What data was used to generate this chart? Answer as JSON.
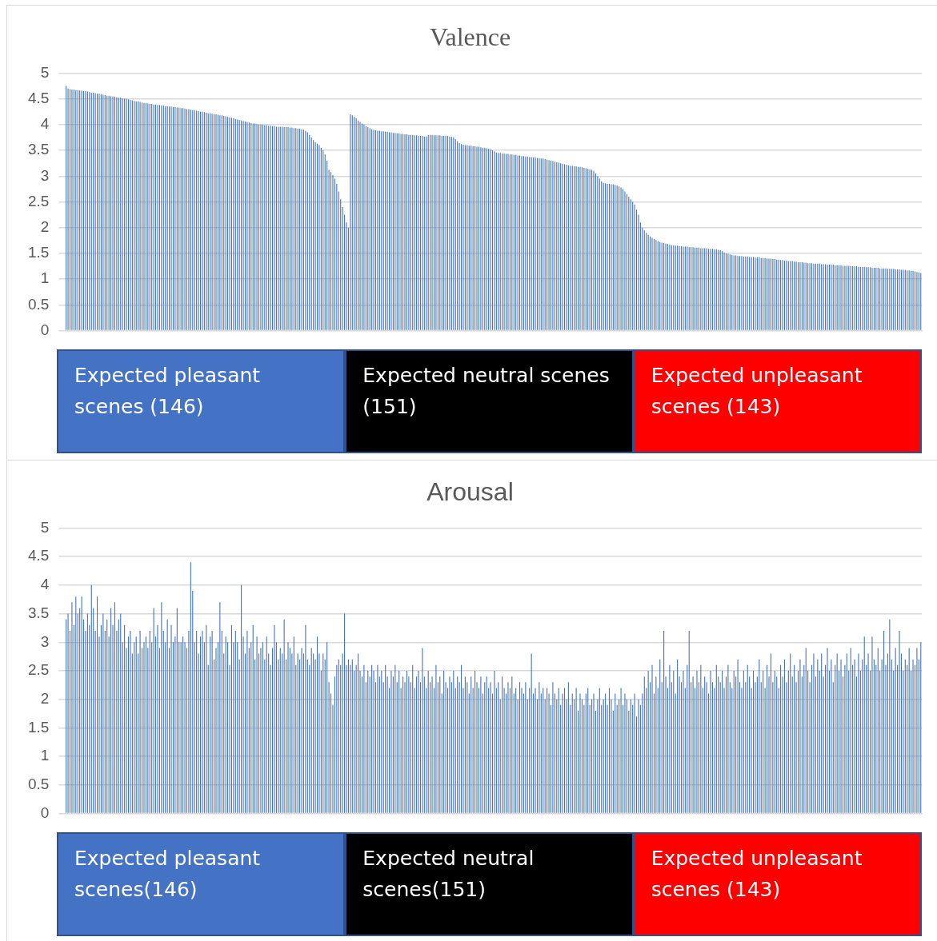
{
  "chart_data": [
    {
      "type": "bar",
      "title": "Valence",
      "tick_labels": "y",
      "grid": "y",
      "legend": false,
      "ylim": [
        0,
        5
      ],
      "yticks": [
        0,
        0.5,
        1,
        1.5,
        2,
        2.5,
        3,
        3.5,
        4,
        4.5,
        5
      ],
      "annotations": [
        "Expected pleasant scenes (146)",
        "Expected neutral scenes (151)",
        "Expected unpleasant scenes (143)"
      ],
      "categories": [
        null,
        null,
        null,
        null,
        null,
        null,
        null,
        null,
        null,
        null,
        null,
        null,
        null,
        null,
        null,
        null,
        null,
        null,
        null,
        null,
        null,
        null,
        null,
        null,
        null,
        null,
        null,
        null,
        null,
        null,
        null,
        null,
        null,
        null,
        null,
        null,
        null,
        null,
        null,
        null,
        null,
        null,
        null,
        null,
        null,
        null,
        null,
        null,
        null,
        null,
        null,
        null,
        null,
        null,
        null,
        null,
        null,
        null,
        null,
        null,
        null,
        null,
        null,
        null,
        null,
        null,
        null,
        null,
        null,
        null,
        null,
        null,
        null,
        null,
        null,
        null,
        null,
        null,
        null,
        null,
        null,
        null,
        null,
        null,
        null,
        null,
        null,
        null,
        null,
        null,
        null,
        null,
        null,
        null,
        null,
        null,
        null,
        null,
        null,
        null,
        null,
        null,
        null,
        null,
        null,
        null,
        null,
        null,
        null,
        null,
        null,
        null,
        null,
        null,
        null,
        null,
        null,
        null,
        null,
        null,
        null,
        null,
        null,
        null,
        null,
        null,
        null,
        null,
        null,
        null,
        null,
        null,
        null,
        null,
        null,
        null,
        null,
        null,
        null,
        null,
        null,
        null,
        null,
        null,
        null,
        null,
        null,
        null,
        null,
        null,
        null,
        null,
        null,
        null,
        null,
        null,
        null,
        null,
        null,
        null,
        null,
        null,
        null,
        null,
        null,
        null,
        null,
        null,
        null,
        null,
        null,
        null,
        null,
        null,
        null,
        null,
        null,
        null,
        null,
        null,
        null,
        null,
        null,
        null,
        null,
        null,
        null,
        null,
        null,
        null,
        null,
        null,
        null,
        null,
        null,
        null,
        null,
        null,
        null,
        null,
        null,
        null,
        null,
        null,
        null,
        null,
        null,
        null,
        null,
        null,
        null,
        null,
        null,
        null,
        null,
        null,
        null,
        null,
        null,
        null,
        null,
        null,
        null,
        null,
        null,
        null,
        null,
        null,
        null,
        null,
        null,
        null,
        null,
        null,
        null,
        null,
        null,
        null,
        null,
        null,
        null,
        null,
        null,
        null,
        null,
        null,
        null,
        null,
        null,
        null,
        null,
        null,
        null,
        null,
        null,
        null,
        null,
        null,
        null,
        null,
        null,
        null,
        null,
        null,
        null,
        null,
        null,
        null,
        null,
        null,
        null,
        null,
        null,
        null,
        null,
        null,
        null,
        null,
        null,
        null,
        null,
        null,
        null,
        null,
        null,
        null,
        null,
        null,
        null,
        null,
        null,
        null,
        null,
        null,
        null,
        null,
        null,
        null,
        null,
        null,
        null,
        null,
        null,
        null,
        null,
        null,
        null,
        null,
        null,
        null,
        null,
        null,
        null,
        null,
        null,
        null,
        null,
        null,
        null,
        null,
        null,
        null,
        null,
        null,
        null,
        null,
        null,
        null,
        null,
        null,
        null,
        null,
        null,
        null,
        null,
        null,
        null,
        null,
        null,
        null,
        null,
        null,
        null,
        null,
        null,
        null,
        null,
        null,
        null,
        null,
        null,
        null,
        null,
        null,
        null,
        null,
        null,
        null,
        null,
        null,
        null,
        null,
        null,
        null,
        null,
        null,
        null,
        null,
        null,
        null,
        null,
        null,
        null,
        null,
        null,
        null,
        null,
        null,
        null,
        null,
        null,
        null,
        null,
        null,
        null,
        null,
        null,
        null,
        null,
        null,
        null,
        null,
        null,
        null,
        null,
        null,
        null,
        null,
        null,
        null,
        null,
        null,
        null,
        null,
        null,
        null,
        null,
        null,
        null,
        null,
        null,
        null,
        null,
        null,
        null,
        null,
        null,
        null,
        null,
        null,
        null,
        null,
        null,
        null,
        null,
        null,
        null,
        null,
        null,
        null,
        null,
        null,
        null,
        null,
        null,
        null,
        null,
        null,
        null,
        null
      ],
      "series": [
        {
          "color": "#4472c4",
          "values": [
            4.75,
            4.7,
            4.69,
            4.68,
            4.68,
            4.67,
            4.67,
            4.66,
            4.66,
            4.65,
            4.65,
            4.64,
            4.63,
            4.62,
            4.62,
            4.61,
            4.6,
            4.6,
            4.59,
            4.58,
            4.57,
            4.56,
            4.56,
            4.55,
            4.55,
            4.54,
            4.53,
            4.52,
            4.52,
            4.51,
            4.5,
            4.5,
            4.49,
            4.48,
            4.47,
            4.46,
            4.45,
            4.45,
            4.44,
            4.43,
            4.42,
            4.42,
            4.41,
            4.4,
            4.4,
            4.39,
            4.39,
            4.38,
            4.38,
            4.37,
            4.37,
            4.36,
            4.36,
            4.35,
            4.35,
            4.34,
            4.34,
            4.33,
            4.33,
            4.32,
            4.32,
            4.31,
            4.3,
            4.3,
            4.29,
            4.28,
            4.28,
            4.27,
            4.26,
            4.25,
            4.25,
            4.24,
            4.23,
            4.22,
            4.22,
            4.21,
            4.2,
            4.2,
            4.19,
            4.18,
            4.18,
            4.17,
            4.16,
            4.15,
            4.14,
            4.13,
            4.12,
            4.11,
            4.1,
            4.09,
            4.08,
            4.07,
            4.06,
            4.05,
            4.04,
            4.03,
            4.02,
            4.02,
            4.01,
            4.0,
            4.0,
            4.0,
            3.99,
            3.99,
            3.98,
            3.98,
            3.97,
            3.97,
            3.96,
            3.96,
            3.96,
            3.96,
            3.95,
            3.95,
            3.95,
            3.94,
            3.94,
            3.93,
            3.93,
            3.92,
            3.92,
            3.91,
            3.9,
            3.88,
            3.85,
            3.8,
            3.75,
            3.7,
            3.66,
            3.63,
            3.6,
            3.55,
            3.5,
            3.42,
            3.3,
            3.12,
            3.08,
            3.02,
            2.95,
            2.85,
            2.7,
            2.55,
            2.4,
            2.25,
            2.1,
            2.0,
            4.2,
            4.18,
            4.15,
            4.12,
            4.08,
            4.05,
            4.02,
            4.0,
            3.97,
            3.95,
            3.93,
            3.91,
            3.9,
            3.89,
            3.88,
            3.88,
            3.87,
            3.87,
            3.86,
            3.86,
            3.85,
            3.85,
            3.84,
            3.84,
            3.83,
            3.83,
            3.82,
            3.82,
            3.81,
            3.81,
            3.8,
            3.8,
            3.8,
            3.79,
            3.79,
            3.78,
            3.78,
            3.78,
            3.77,
            3.77,
            3.8,
            3.8,
            3.8,
            3.79,
            3.79,
            3.79,
            3.79,
            3.78,
            3.78,
            3.78,
            3.78,
            3.77,
            3.76,
            3.75,
            3.72,
            3.68,
            3.64,
            3.62,
            3.61,
            3.6,
            3.6,
            3.59,
            3.59,
            3.58,
            3.58,
            3.57,
            3.57,
            3.56,
            3.55,
            3.55,
            3.54,
            3.53,
            3.52,
            3.5,
            3.48,
            3.46,
            3.45,
            3.45,
            3.44,
            3.44,
            3.43,
            3.43,
            3.42,
            3.42,
            3.41,
            3.41,
            3.4,
            3.4,
            3.39,
            3.39,
            3.38,
            3.38,
            3.37,
            3.37,
            3.36,
            3.36,
            3.35,
            3.35,
            3.34,
            3.34,
            3.33,
            3.32,
            3.31,
            3.3,
            3.29,
            3.28,
            3.27,
            3.26,
            3.25,
            3.24,
            3.23,
            3.22,
            3.21,
            3.2,
            3.2,
            3.19,
            3.19,
            3.18,
            3.18,
            3.17,
            3.16,
            3.15,
            3.14,
            3.13,
            3.12,
            3.1,
            3.05,
            3.0,
            2.95,
            2.9,
            2.87,
            2.86,
            2.85,
            2.85,
            2.84,
            2.84,
            2.83,
            2.82,
            2.8,
            2.78,
            2.75,
            2.7,
            2.65,
            2.6,
            2.55,
            2.5,
            2.45,
            2.35,
            2.25,
            2.1,
            2.0,
            1.95,
            1.9,
            1.86,
            1.83,
            1.8,
            1.78,
            1.76,
            1.74,
            1.72,
            1.71,
            1.7,
            1.69,
            1.68,
            1.67,
            1.66,
            1.66,
            1.65,
            1.65,
            1.64,
            1.64,
            1.63,
            1.63,
            1.63,
            1.62,
            1.62,
            1.62,
            1.61,
            1.61,
            1.61,
            1.6,
            1.6,
            1.6,
            1.6,
            1.59,
            1.59,
            1.59,
            1.58,
            1.58,
            1.57,
            1.56,
            1.54,
            1.52,
            1.5,
            1.49,
            1.48,
            1.47,
            1.46,
            1.46,
            1.45,
            1.45,
            1.45,
            1.44,
            1.44,
            1.44,
            1.43,
            1.43,
            1.43,
            1.42,
            1.42,
            1.42,
            1.41,
            1.41,
            1.41,
            1.4,
            1.4,
            1.4,
            1.39,
            1.39,
            1.38,
            1.38,
            1.37,
            1.37,
            1.36,
            1.36,
            1.35,
            1.35,
            1.35,
            1.34,
            1.34,
            1.33,
            1.33,
            1.33,
            1.32,
            1.32,
            1.31,
            1.31,
            1.31,
            1.3,
            1.3,
            1.3,
            1.3,
            1.29,
            1.29,
            1.29,
            1.28,
            1.28,
            1.28,
            1.28,
            1.27,
            1.27,
            1.27,
            1.27,
            1.26,
            1.26,
            1.26,
            1.26,
            1.25,
            1.25,
            1.25,
            1.25,
            1.24,
            1.24,
            1.24,
            1.24,
            1.23,
            1.23,
            1.23,
            1.22,
            1.22,
            1.22,
            1.22,
            1.21,
            1.21,
            1.21,
            1.21,
            1.2,
            1.2,
            1.2,
            1.2,
            1.19,
            1.19,
            1.19,
            1.18,
            1.18,
            1.18,
            1.17,
            1.17,
            1.16,
            1.16,
            1.15,
            1.14,
            1.13,
            1.12
          ]
        }
      ]
    },
    {
      "type": "bar",
      "title": "Arousal",
      "tick_labels": "y",
      "grid": "y",
      "legend": false,
      "ylim": [
        0,
        5
      ],
      "yticks": [
        0,
        0.5,
        1,
        1.5,
        2,
        2.5,
        3,
        3.5,
        4,
        4.5,
        5
      ],
      "annotations": [
        "Expected pleasant scenes(146)",
        "Expected neutral scenes(151)",
        "Expected unpleasant scenes (143)"
      ],
      "categories": [
        null,
        null,
        null,
        null,
        null,
        null,
        null,
        null,
        null,
        null,
        null,
        null,
        null,
        null,
        null,
        null,
        null,
        null,
        null,
        null,
        null,
        null,
        null,
        null,
        null,
        null,
        null,
        null,
        null,
        null,
        null,
        null,
        null,
        null,
        null,
        null,
        null,
        null,
        null,
        null,
        null,
        null,
        null,
        null,
        null,
        null,
        null,
        null,
        null,
        null,
        null,
        null,
        null,
        null,
        null,
        null,
        null,
        null,
        null,
        null,
        null,
        null,
        null,
        null,
        null,
        null,
        null,
        null,
        null,
        null,
        null,
        null,
        null,
        null,
        null,
        null,
        null,
        null,
        null,
        null,
        null,
        null,
        null,
        null,
        null,
        null,
        null,
        null,
        null,
        null,
        null,
        null,
        null,
        null,
        null,
        null,
        null,
        null,
        null,
        null,
        null,
        null,
        null,
        null,
        null,
        null,
        null,
        null,
        null,
        null,
        null,
        null,
        null,
        null,
        null,
        null,
        null,
        null,
        null,
        null,
        null,
        null,
        null,
        null,
        null,
        null,
        null,
        null,
        null,
        null,
        null,
        null,
        null,
        null,
        null,
        null,
        null,
        null,
        null,
        null,
        null,
        null,
        null,
        null,
        null,
        null,
        null,
        null,
        null,
        null,
        null,
        null,
        null,
        null,
        null,
        null,
        null,
        null,
        null,
        null,
        null,
        null,
        null,
        null,
        null,
        null,
        null,
        null,
        null,
        null,
        null,
        null,
        null,
        null,
        null,
        null,
        null,
        null,
        null,
        null,
        null,
        null,
        null,
        null,
        null,
        null,
        null,
        null,
        null,
        null,
        null,
        null,
        null,
        null,
        null,
        null,
        null,
        null,
        null,
        null,
        null,
        null,
        null,
        null,
        null,
        null,
        null,
        null,
        null,
        null,
        null,
        null,
        null,
        null,
        null,
        null,
        null,
        null,
        null,
        null,
        null,
        null,
        null,
        null,
        null,
        null,
        null,
        null,
        null,
        null,
        null,
        null,
        null,
        null,
        null,
        null,
        null,
        null,
        null,
        null,
        null,
        null,
        null,
        null,
        null,
        null,
        null,
        null,
        null,
        null,
        null,
        null,
        null,
        null,
        null,
        null,
        null,
        null,
        null,
        null,
        null,
        null,
        null,
        null,
        null,
        null,
        null,
        null,
        null,
        null,
        null,
        null,
        null,
        null,
        null,
        null,
        null,
        null,
        null,
        null,
        null,
        null,
        null,
        null,
        null,
        null,
        null,
        null,
        null,
        null,
        null,
        null,
        null,
        null,
        null,
        null,
        null,
        null,
        null,
        null,
        null,
        null,
        null,
        null,
        null,
        null,
        null,
        null,
        null,
        null,
        null,
        null,
        null,
        null,
        null,
        null,
        null,
        null,
        null,
        null,
        null,
        null,
        null,
        null,
        null,
        null,
        null,
        null,
        null,
        null,
        null,
        null,
        null,
        null,
        null,
        null,
        null,
        null,
        null,
        null,
        null,
        null,
        null,
        null,
        null,
        null,
        null,
        null,
        null,
        null,
        null,
        null,
        null,
        null,
        null,
        null,
        null,
        null,
        null,
        null,
        null,
        null,
        null,
        null,
        null,
        null,
        null,
        null,
        null,
        null,
        null,
        null,
        null,
        null,
        null,
        null,
        null,
        null,
        null,
        null,
        null,
        null,
        null,
        null,
        null,
        null,
        null,
        null,
        null,
        null,
        null,
        null,
        null,
        null,
        null,
        null,
        null,
        null,
        null,
        null,
        null,
        null,
        null,
        null,
        null,
        null,
        null,
        null,
        null,
        null,
        null,
        null,
        null,
        null,
        null,
        null,
        null,
        null,
        null,
        null,
        null,
        null,
        null,
        null,
        null,
        null,
        null,
        null,
        null,
        null,
        null,
        null,
        null,
        null,
        null,
        null,
        null,
        null,
        null,
        null
      ],
      "series": [
        {
          "color": "#4472c4",
          "values": [
            3.4,
            3.5,
            3.2,
            3.7,
            3.3,
            3.8,
            3.5,
            3.6,
            3.8,
            3.4,
            3.2,
            3.5,
            3.3,
            4.0,
            3.6,
            3.2,
            3.8,
            3.1,
            3.3,
            3.5,
            3.2,
            3.4,
            3.1,
            3.6,
            3.3,
            3.7,
            3.2,
            3.4,
            3.5,
            3.0,
            3.3,
            2.9,
            3.1,
            3.2,
            2.8,
            3.0,
            3.1,
            2.8,
            3.2,
            2.9,
            3.0,
            3.1,
            2.9,
            3.2,
            3.0,
            3.6,
            3.1,
            3.3,
            2.9,
            3.7,
            3.2,
            3.0,
            3.4,
            2.9,
            3.3,
            3.0,
            3.1,
            3.6,
            3.0,
            3.0,
            3.1,
            3.0,
            2.9,
            3.2,
            4.4,
            3.9,
            3.0,
            3.2,
            2.8,
            3.1,
            3.2,
            3.0,
            3.3,
            2.6,
            3.1,
            3.2,
            2.7,
            2.9,
            3.0,
            3.7,
            3.2,
            2.8,
            3.1,
            3.0,
            2.6,
            3.3,
            3.0,
            3.2,
            3.0,
            2.7,
            4.0,
            3.1,
            2.8,
            3.2,
            2.9,
            3.0,
            3.3,
            2.7,
            3.1,
            2.8,
            2.9,
            3.0,
            2.7,
            3.1,
            2.8,
            2.6,
            2.9,
            3.3,
            3.0,
            2.7,
            2.9,
            2.8,
            3.4,
            2.7,
            3.0,
            2.9,
            2.8,
            3.1,
            2.6,
            2.8,
            2.7,
            2.9,
            2.8,
            3.3,
            2.7,
            2.6,
            2.9,
            2.8,
            2.7,
            3.1,
            2.8,
            2.5,
            2.8,
            2.7,
            3.0,
            2.3,
            2.1,
            1.9,
            2.4,
            2.6,
            2.7,
            2.6,
            2.8,
            3.5,
            2.6,
            2.7,
            2.6,
            2.7,
            2.5,
            2.6,
            2.8,
            2.5,
            2.4,
            2.6,
            2.3,
            2.5,
            2.4,
            2.6,
            2.5,
            2.3,
            2.6,
            2.4,
            2.5,
            2.3,
            2.6,
            2.4,
            2.2,
            2.5,
            2.4,
            2.6,
            2.3,
            2.5,
            2.2,
            2.4,
            2.3,
            2.5,
            2.4,
            2.3,
            2.6,
            2.2,
            2.4,
            2.5,
            2.3,
            2.9,
            2.4,
            2.2,
            2.5,
            2.3,
            2.4,
            2.2,
            2.6,
            2.3,
            2.4,
            2.1,
            2.5,
            2.3,
            2.2,
            2.4,
            2.3,
            2.5,
            2.2,
            2.4,
            2.3,
            2.6,
            2.2,
            2.4,
            2.3,
            2.1,
            2.4,
            2.2,
            2.5,
            2.3,
            2.2,
            2.4,
            2.1,
            2.3,
            2.4,
            2.2,
            2.3,
            2.1,
            2.5,
            2.2,
            2.3,
            2.0,
            2.4,
            2.2,
            2.1,
            2.3,
            2.2,
            2.4,
            2.1,
            2.2,
            2.0,
            2.3,
            2.2,
            2.1,
            2.3,
            2.0,
            2.2,
            2.8,
            2.1,
            2.2,
            2.0,
            2.3,
            2.1,
            2.2,
            2.0,
            2.2,
            2.1,
            1.9,
            2.3,
            2.1,
            2.0,
            2.2,
            1.9,
            2.1,
            2.2,
            2.0,
            2.3,
            1.9,
            2.1,
            2.0,
            2.2,
            1.8,
            2.1,
            2.0,
            1.9,
            2.1,
            2.2,
            1.9,
            2.0,
            2.1,
            1.8,
            2.0,
            2.2,
            1.9,
            2.0,
            2.1,
            1.9,
            2.2,
            2.0,
            1.8,
            2.1,
            1.9,
            2.0,
            2.2,
            1.9,
            2.1,
            2.0,
            1.8,
            2.0,
            1.9,
            2.1,
            1.7,
            2.0,
            1.9,
            2.1,
            2.4,
            2.2,
            2.5,
            2.3,
            2.6,
            2.1,
            2.4,
            2.2,
            2.7,
            2.3,
            3.2,
            2.4,
            2.2,
            2.6,
            2.3,
            2.5,
            2.1,
            2.7,
            2.4,
            2.3,
            2.5,
            2.2,
            2.6,
            3.2,
            2.3,
            2.4,
            2.2,
            2.5,
            2.3,
            2.6,
            2.2,
            2.4,
            2.3,
            2.1,
            2.5,
            2.3,
            2.2,
            2.6,
            2.4,
            2.3,
            2.5,
            2.2,
            2.4,
            2.6,
            2.3,
            2.2,
            2.5,
            2.4,
            2.7,
            2.3,
            2.2,
            2.5,
            2.3,
            2.6,
            2.4,
            2.2,
            2.5,
            2.3,
            2.4,
            2.7,
            2.3,
            2.5,
            2.2,
            2.6,
            2.4,
            2.8,
            2.3,
            2.5,
            2.4,
            2.2,
            2.6,
            2.4,
            2.7,
            2.3,
            2.5,
            2.8,
            2.4,
            2.6,
            2.3,
            2.5,
            2.7,
            2.4,
            2.6,
            2.9,
            2.5,
            2.3,
            2.6,
            2.8,
            2.4,
            2.7,
            2.5,
            2.8,
            2.4,
            2.6,
            2.9,
            2.5,
            2.7,
            2.3,
            2.6,
            2.8,
            2.5,
            2.7,
            2.4,
            2.6,
            2.8,
            2.5,
            2.9,
            2.6,
            2.7,
            2.4,
            2.8,
            2.5,
            2.7,
            3.1,
            2.6,
            2.8,
            2.5,
            3.1,
            2.7,
            2.6,
            2.9,
            2.5,
            2.7,
            3.2,
            2.6,
            2.8,
            3.4,
            2.7,
            2.5,
            2.9,
            2.6,
            3.2,
            2.8,
            2.5,
            2.7,
            2.6,
            2.9,
            2.5,
            2.7,
            2.6,
            2.9,
            2.7,
            3.0
          ]
        }
      ]
    }
  ]
}
